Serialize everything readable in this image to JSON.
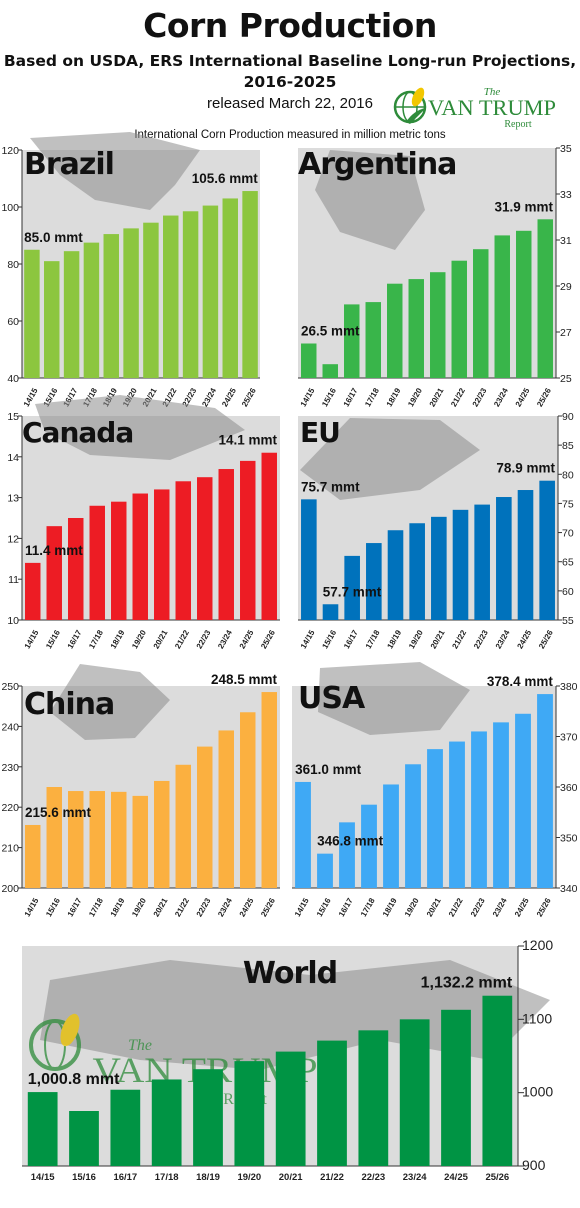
{
  "header": {
    "title": "Corn Production",
    "subtitle_line1": "Based on USDA, ERS International Baseline Long-run Projections,",
    "subtitle_line2": "2016-2025",
    "released": "released March 22, 2016",
    "caption": "International Corn Production measured in million metric tons",
    "logo": {
      "the": "The",
      "name": "VAN TRUMP",
      "report": "Report"
    }
  },
  "colors": {
    "panel_bg": "#dcdcdc",
    "map_gray": "#8d8d8d",
    "brazil": "#8cc63f",
    "argentina": "#39b54a",
    "canada": "#ed1c24",
    "eu": "#0072bc",
    "china": "#fbb040",
    "usa": "#3fa9f5",
    "world": "#009444",
    "logo_green": "#2e8b3a",
    "logo_yellow": "#f2c700"
  },
  "chart_data": [
    {
      "type": "bar",
      "title": "Brazil",
      "categories": [
        "14/15",
        "15/16",
        "16/17",
        "17/18",
        "18/19",
        "19/20",
        "20/21",
        "21/22",
        "22/23",
        "23/24",
        "24/25",
        "25/26"
      ],
      "values": [
        85.0,
        81.0,
        84.5,
        87.5,
        90.5,
        92.5,
        94.5,
        97.0,
        98.5,
        100.5,
        103.0,
        105.6
      ],
      "ylim": [
        40,
        120
      ],
      "yticks": [
        40,
        60,
        80,
        100,
        120
      ],
      "axis_side": "left",
      "annotations": [
        {
          "index": 0,
          "text": "85.0 mmt"
        },
        {
          "index": 11,
          "text": "105.6 mmt"
        }
      ]
    },
    {
      "type": "bar",
      "title": "Argentina",
      "categories": [
        "14/15",
        "15/16",
        "16/17",
        "17/18",
        "18/19",
        "19/20",
        "20/21",
        "21/22",
        "22/23",
        "23/24",
        "24/25",
        "25/26"
      ],
      "values": [
        26.5,
        25.6,
        28.2,
        28.3,
        29.1,
        29.3,
        29.6,
        30.1,
        30.6,
        31.2,
        31.4,
        31.9
      ],
      "ylim": [
        25,
        35
      ],
      "yticks": [
        25,
        27,
        29,
        31,
        33,
        35
      ],
      "axis_side": "right",
      "annotations": [
        {
          "index": 0,
          "text": "26.5 mmt"
        },
        {
          "index": 11,
          "text": "31.9 mmt"
        }
      ]
    },
    {
      "type": "bar",
      "title": "Canada",
      "categories": [
        "14/15",
        "15/16",
        "16/17",
        "17/18",
        "18/19",
        "19/20",
        "20/21",
        "21/22",
        "22/23",
        "23/24",
        "24/25",
        "25/26"
      ],
      "values": [
        11.4,
        12.3,
        12.5,
        12.8,
        12.9,
        13.1,
        13.2,
        13.4,
        13.5,
        13.7,
        13.9,
        14.1
      ],
      "ylim": [
        10,
        15
      ],
      "yticks": [
        10,
        11,
        12,
        13,
        14,
        15
      ],
      "axis_side": "left",
      "annotations": [
        {
          "index": 0,
          "text": "11.4 mmt"
        },
        {
          "index": 11,
          "text": "14.1 mmt"
        }
      ]
    },
    {
      "type": "bar",
      "title": "EU",
      "categories": [
        "14/15",
        "15/16",
        "16/17",
        "17/18",
        "18/19",
        "19/20",
        "20/21",
        "21/22",
        "22/23",
        "23/24",
        "24/25",
        "25/26"
      ],
      "values": [
        75.7,
        57.7,
        66.0,
        68.2,
        70.4,
        71.6,
        72.7,
        73.9,
        74.8,
        76.1,
        77.3,
        78.9
      ],
      "ylim": [
        55,
        90
      ],
      "yticks": [
        55,
        60,
        65,
        70,
        75,
        80,
        85,
        90
      ],
      "axis_side": "right",
      "annotations": [
        {
          "index": 0,
          "text": "75.7 mmt"
        },
        {
          "index": 1,
          "text": "57.7 mmt"
        },
        {
          "index": 11,
          "text": "78.9 mmt"
        }
      ]
    },
    {
      "type": "bar",
      "title": "China",
      "categories": [
        "14/15",
        "15/16",
        "16/17",
        "17/18",
        "18/19",
        "19/20",
        "20/21",
        "21/22",
        "22/23",
        "23/24",
        "24/25",
        "25/26"
      ],
      "values": [
        215.6,
        225.0,
        224.0,
        224.0,
        223.8,
        222.8,
        226.5,
        230.5,
        235.0,
        239.0,
        243.5,
        248.5
      ],
      "ylim": [
        200,
        250
      ],
      "yticks": [
        200,
        210,
        220,
        230,
        240,
        250
      ],
      "axis_side": "left",
      "annotations": [
        {
          "index": 0,
          "text": "215.6 mmt"
        },
        {
          "index": 11,
          "text": "248.5 mmt"
        }
      ]
    },
    {
      "type": "bar",
      "title": "USA",
      "categories": [
        "14/15",
        "15/16",
        "16/17",
        "17/18",
        "18/19",
        "19/20",
        "20/21",
        "21/22",
        "22/23",
        "23/24",
        "24/25",
        "25/26"
      ],
      "values": [
        361.0,
        346.8,
        353.0,
        356.5,
        360.5,
        364.5,
        367.5,
        369.0,
        371.0,
        372.8,
        374.5,
        378.4
      ],
      "ylim": [
        340,
        380
      ],
      "yticks": [
        340,
        350,
        360,
        370,
        380
      ],
      "axis_side": "right",
      "annotations": [
        {
          "index": 0,
          "text": "361.0 mmt"
        },
        {
          "index": 1,
          "text": "346.8 mmt"
        },
        {
          "index": 11,
          "text": "378.4 mmt"
        }
      ]
    },
    {
      "type": "bar",
      "title": "World",
      "categories": [
        "14/15",
        "15/16",
        "16/17",
        "17/18",
        "18/19",
        "19/20",
        "20/21",
        "21/22",
        "22/23",
        "23/24",
        "24/25",
        "25/26"
      ],
      "values": [
        1000.8,
        975.0,
        1004.0,
        1018.0,
        1032.0,
        1043.0,
        1056.0,
        1071.0,
        1085.0,
        1100.0,
        1113.0,
        1132.2
      ],
      "ylim": [
        900,
        1200
      ],
      "yticks": [
        900,
        1000,
        1100,
        1200
      ],
      "axis_side": "right",
      "annotations": [
        {
          "index": 0,
          "text": "1,000.8 mmt"
        },
        {
          "index": 11,
          "text": "1,132.2 mmt"
        }
      ]
    }
  ]
}
